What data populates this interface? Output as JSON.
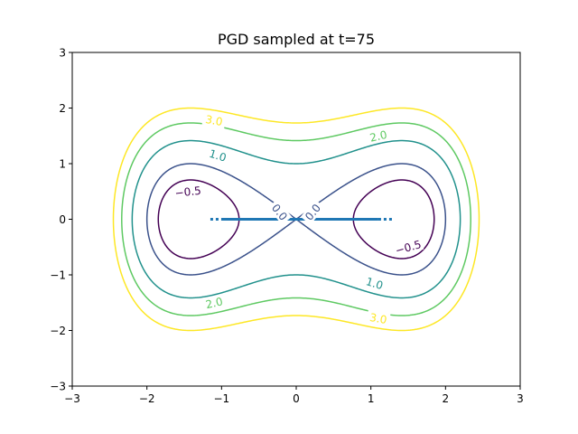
{
  "chart_data": {
    "type": "contour",
    "title": "PGD sampled at t=75",
    "xlabel": "",
    "ylabel": "",
    "xlim": [
      -3,
      3
    ],
    "ylim": [
      -3,
      3
    ],
    "x_ticks": [
      -3,
      -2,
      -1,
      0,
      1,
      2,
      3
    ],
    "y_ticks": [
      -3,
      -2,
      -1,
      0,
      1,
      2,
      3
    ],
    "x_tick_labels": [
      "−3",
      "−2",
      "−1",
      "0",
      "1",
      "2",
      "3"
    ],
    "y_tick_labels": [
      "−3",
      "−2",
      "−1",
      "0",
      "1",
      "2",
      "3"
    ],
    "grid": false,
    "contour_levels": [
      {
        "value": -0.5,
        "label": "−0.5",
        "color": "#440154"
      },
      {
        "value": 0.0,
        "label": "0.0",
        "color": "#3b528b"
      },
      {
        "value": 1.0,
        "label": "1.0",
        "color": "#21918c"
      },
      {
        "value": 2.0,
        "label": "2.0",
        "color": "#5ec962"
      },
      {
        "value": 3.0,
        "label": "3.0",
        "color": "#fde725"
      }
    ],
    "contour_label_positions": [
      {
        "label": "−0.5",
        "x": -1.45,
        "y": 0.5,
        "color": "#440154"
      },
      {
        "label": "−0.5",
        "x": 1.5,
        "y": -0.5,
        "color": "#440154"
      },
      {
        "label": "0.0",
        "x": -0.22,
        "y": 0.13,
        "color": "#3b528b"
      },
      {
        "label": "0.0",
        "x": 0.22,
        "y": 0.13,
        "color": "#3b528b"
      },
      {
        "label": "1.0",
        "x": -1.05,
        "y": 1.15,
        "color": "#21918c"
      },
      {
        "label": "1.0",
        "x": 1.05,
        "y": -1.15,
        "color": "#21918c"
      },
      {
        "label": "2.0",
        "x": 1.1,
        "y": 1.5,
        "color": "#5ec962"
      },
      {
        "label": "2.0",
        "x": -1.1,
        "y": -1.5,
        "color": "#5ec962"
      },
      {
        "label": "3.0",
        "x": -1.1,
        "y": 1.78,
        "color": "#fde725"
      },
      {
        "label": "3.0",
        "x": 1.1,
        "y": -1.78,
        "color": "#fde725"
      }
    ],
    "samples": {
      "color": "#1f77b4",
      "y": 0,
      "solid_range": [
        -1.0,
        1.1
      ],
      "dotted_range": [
        -1.15,
        1.3
      ]
    },
    "colors": {
      "axes": "#000000",
      "background": "#ffffff"
    }
  }
}
